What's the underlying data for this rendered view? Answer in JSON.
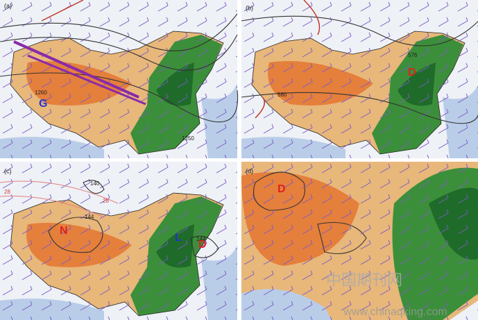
{
  "panels": [
    {
      "label": "(a)",
      "contour_labels": [
        "1260",
        "1250"
      ],
      "markers": [
        "G"
      ]
    },
    {
      "label": "(b)",
      "contour_labels": [
        "576",
        "580"
      ],
      "markers": [
        "D"
      ]
    },
    {
      "label": "(c)",
      "contour_labels": [
        "140",
        "28",
        "28",
        "144",
        "144"
      ],
      "markers": [
        "N",
        "L",
        "D"
      ]
    },
    {
      "label": "(d)",
      "contour_labels": [],
      "markers": [
        "D"
      ]
    }
  ],
  "watermark": {
    "chinese": "中国期刊网",
    "url": "www.chinaqking.com"
  }
}
